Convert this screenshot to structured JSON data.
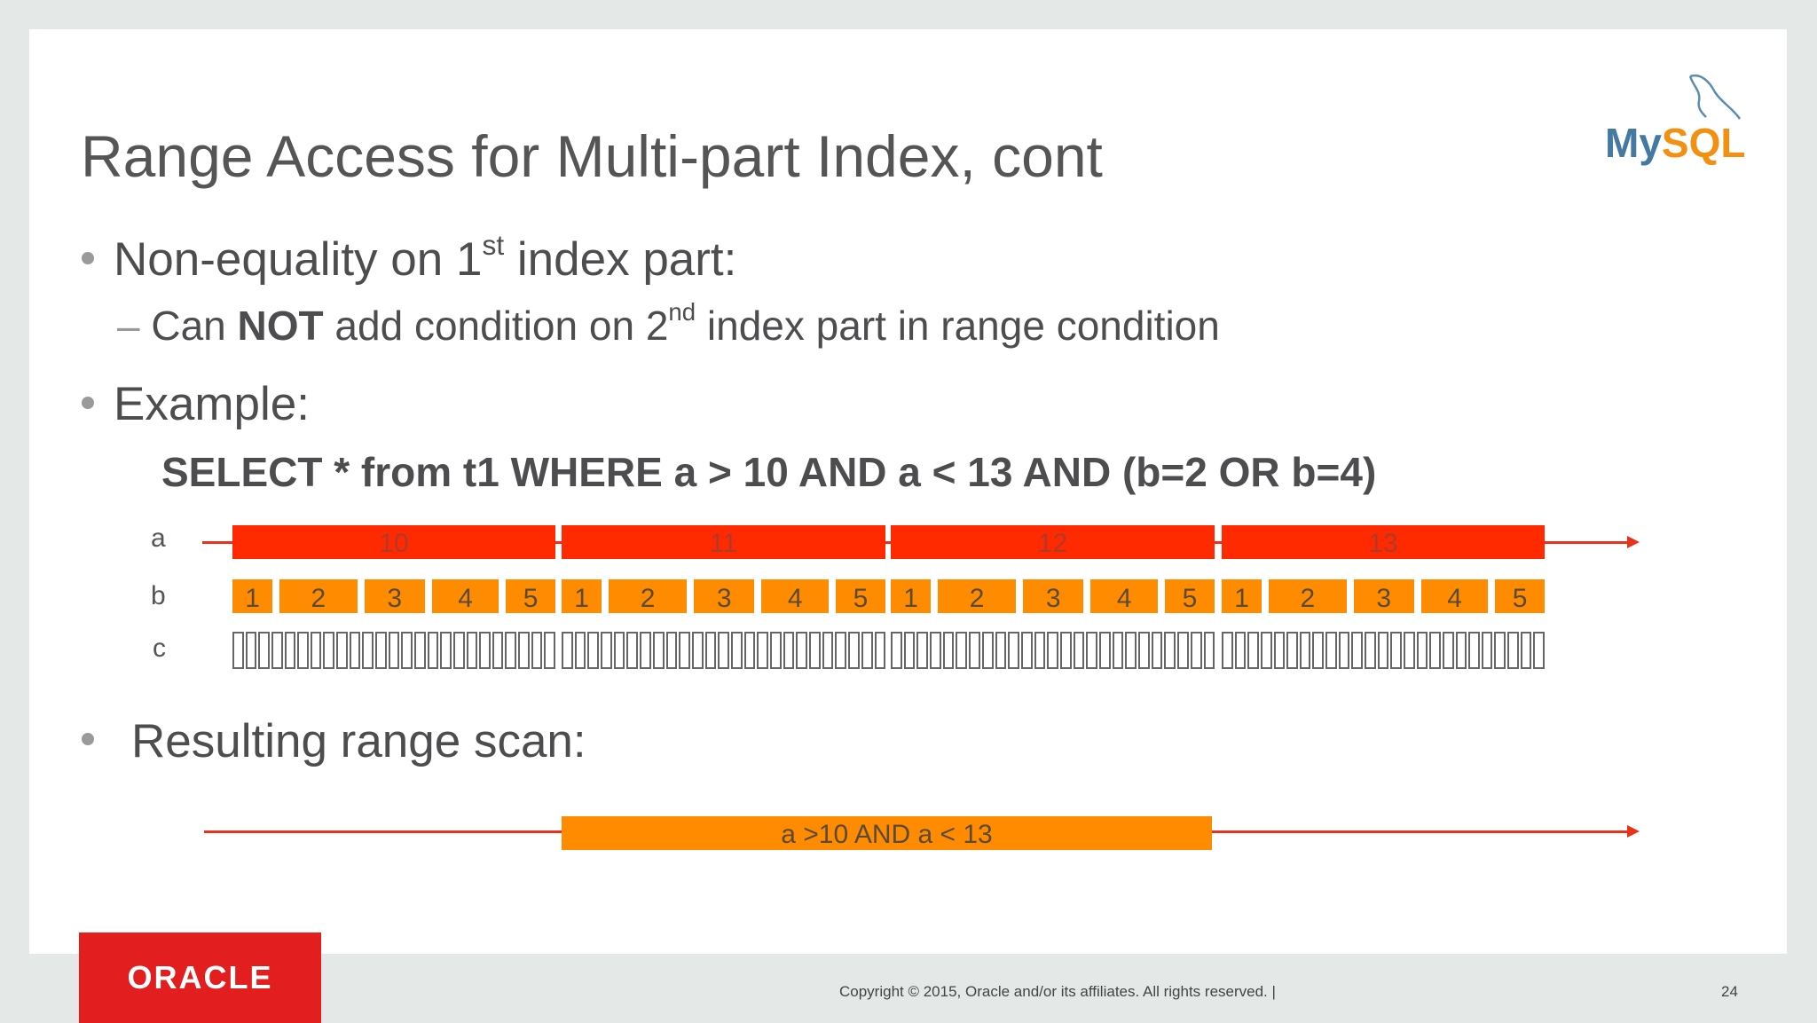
{
  "title": "Range Access for Multi-part Index, cont",
  "bullets": {
    "b1_pre": "Non-equality on 1",
    "b1_sup": "st",
    "b1_post": " index part:",
    "sub_dash": "–",
    "sub_pre": "Can ",
    "sub_bold": "NOT",
    "sub_mid": " add condition on 2",
    "sub_sup": "nd",
    "sub_post": " index part in range condition",
    "example": "Example:",
    "sql": "SELECT * from t1 WHERE a > 10 AND a < 13 AND (b=2 OR b=4)",
    "result": "Resulting range scan:"
  },
  "diagram": {
    "row_labels": [
      "a",
      "b",
      "c"
    ],
    "a_values": [
      "10",
      "11",
      "12",
      "13"
    ],
    "b_values": [
      "1",
      "2",
      "3",
      "4",
      "5"
    ],
    "result_label": "a >10 AND a < 13",
    "colors": {
      "a": "#ff2a00",
      "b": "#ff8c00",
      "line": "#e8321c"
    }
  },
  "logos": {
    "mysql": "MySQL",
    "oracle": "ORACLE"
  },
  "footer": {
    "copyright": "Copyright © 2015, Oracle and/or its affiliates. All rights reserved.  |",
    "page": "24"
  }
}
